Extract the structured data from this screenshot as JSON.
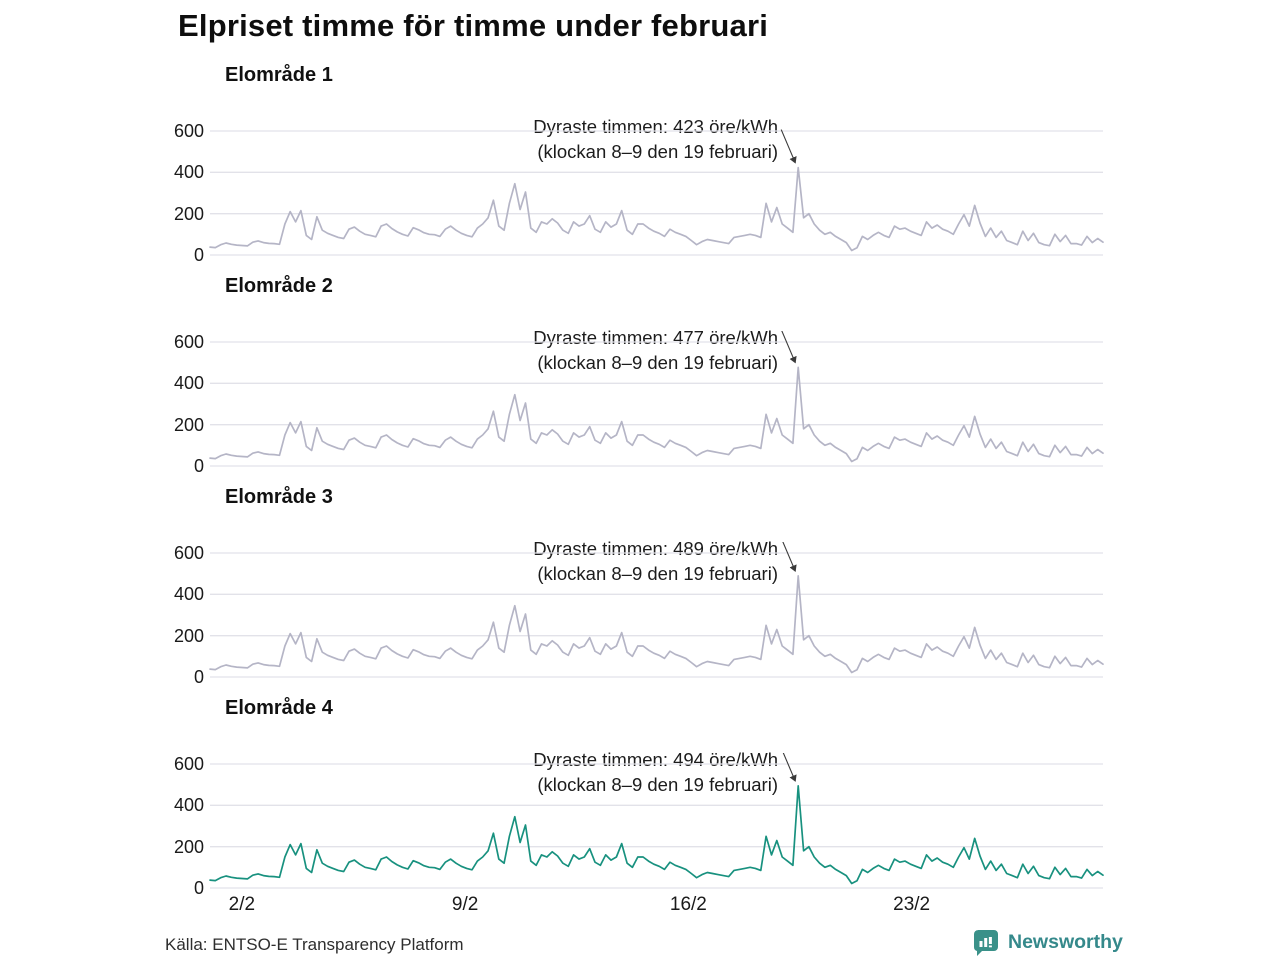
{
  "source": "Källa: ENTSO-E Transparency Platform",
  "branding": {
    "name": "Newsworthy",
    "color": "#35898b",
    "icon": "newsworthy-speech-bubble-barchart"
  },
  "chart_data": {
    "type": "line",
    "title": "Elpriset timme för timme under februari",
    "unit": "öre/kWh",
    "x_range": [
      "1 februari",
      "28 februari"
    ],
    "x_step_hours": 4,
    "days": 28,
    "x_ticks": [
      {
        "label": "2/2",
        "day": 1
      },
      {
        "label": "9/2",
        "day": 8
      },
      {
        "label": "16/2",
        "day": 15
      },
      {
        "label": "23/2",
        "day": 22
      }
    ],
    "y_ticks": [
      600,
      400,
      200,
      0
    ],
    "ylim": [
      0,
      650
    ],
    "grid": true,
    "colors": {
      "gridline": "#e2e2e9",
      "annotation": "#1c1c1c",
      "arrow": "#3a3a3a"
    },
    "shared_values": [
      38,
      36,
      50,
      58,
      52,
      48,
      46,
      44,
      62,
      68,
      60,
      56,
      55,
      52,
      150,
      210,
      160,
      215,
      95,
      75,
      185,
      120,
      105,
      95,
      85,
      80,
      125,
      135,
      115,
      100,
      95,
      88,
      140,
      150,
      128,
      112,
      100,
      92,
      132,
      122,
      108,
      100,
      98,
      90,
      125,
      140,
      120,
      105,
      95,
      88,
      130,
      150,
      180,
      265,
      140,
      120,
      250,
      345,
      220,
      305,
      130,
      110,
      160,
      150,
      175,
      155,
      120,
      105,
      160,
      140,
      150,
      190,
      125,
      110,
      160,
      135,
      150,
      215,
      120,
      100,
      150,
      150,
      130,
      115,
      105,
      90,
      125,
      110,
      100,
      90,
      70,
      50,
      65,
      75,
      70,
      65,
      60,
      55,
      85,
      90,
      95,
      100,
      95,
      85,
      250,
      160,
      230,
      150,
      130,
      110,
      423,
      180,
      200,
      150,
      120,
      100,
      110,
      90,
      75,
      60,
      22,
      35,
      90,
      75,
      95,
      110,
      95,
      85,
      140,
      125,
      130,
      115,
      105,
      95,
      160,
      130,
      145,
      125,
      115,
      100,
      150,
      195,
      140,
      240,
      155,
      90,
      130,
      85,
      115,
      70,
      60,
      50,
      115,
      70,
      105,
      60,
      50,
      45,
      100,
      65,
      95,
      55,
      55,
      48,
      90,
      60,
      80,
      62
    ],
    "peak_index": 110,
    "peak_time": "klockan 8–9 den 19 februari",
    "series": [
      {
        "name": "Elområde 1",
        "color": "#b5b5c6",
        "peak_ore_per_kwh": 423,
        "annotation_line1": "Dyraste timmen: 423 öre/kWh",
        "annotation_line2": "(klockan 8–9 den 19 februari)"
      },
      {
        "name": "Elområde 2",
        "color": "#b5b5c6",
        "peak_ore_per_kwh": 477,
        "annotation_line1": "Dyraste timmen: 477 öre/kWh",
        "annotation_line2": "(klockan 8–9 den 19 februari)"
      },
      {
        "name": "Elområde 3",
        "color": "#b5b5c6",
        "peak_ore_per_kwh": 489,
        "annotation_line1": "Dyraste timmen: 489 öre/kWh",
        "annotation_line2": "(klockan 8–9 den 19 februari)"
      },
      {
        "name": "Elområde 4",
        "color": "#18917f",
        "peak_ore_per_kwh": 494,
        "annotation_line1": "Dyraste timmen: 494 öre/kWh",
        "annotation_line2": "(klockan 8–9 den 19 februari)"
      }
    ]
  }
}
